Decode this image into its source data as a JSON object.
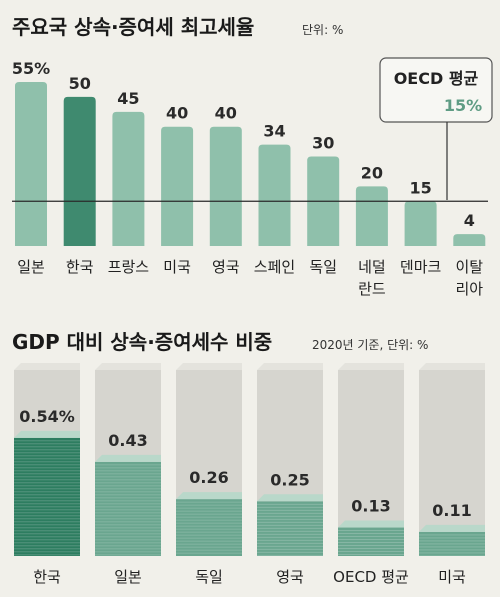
{
  "colors": {
    "bar": "#8fc0ab",
    "bar_highlight": "#3f8a6f",
    "ref_line": "#2a2a2a",
    "stack_bg": "#d6d5cf",
    "stack_fill": "#6aa68f",
    "stack_fill_highlight": "#2d7d60",
    "oecd_accent": "#5f9c84"
  },
  "chart_data": [
    {
      "type": "bar",
      "title": "주요국 상속·증여세 최고세율",
      "subtitle": "단위: %",
      "categories": [
        "일본",
        "한국",
        "프랑스",
        "미국",
        "영국",
        "스페인",
        "독일",
        "네덜\n란드",
        "덴마크",
        "이탈\n리아"
      ],
      "values": [
        55,
        50,
        45,
        40,
        40,
        34,
        30,
        20,
        15,
        4
      ],
      "value_labels": [
        "55%",
        "50",
        "45",
        "40",
        "40",
        "34",
        "30",
        "20",
        "15",
        "4"
      ],
      "highlight_index": 1,
      "reference_line": {
        "label": "OECD 평균",
        "value": 15,
        "value_label": "15%"
      },
      "ylim": [
        0,
        55
      ]
    },
    {
      "type": "bar",
      "title": "GDP 대비 상속·증여세수 비중",
      "subtitle": "2020년 기준, 단위: %",
      "categories": [
        "한국",
        "일본",
        "독일",
        "영국",
        "OECD 평균",
        "미국"
      ],
      "values": [
        0.54,
        0.43,
        0.26,
        0.25,
        0.13,
        0.11
      ],
      "value_labels": [
        "0.54%",
        "0.43",
        "0.26",
        "0.25",
        "0.13",
        "0.11"
      ],
      "highlight_index": 0,
      "ylim": [
        0,
        0.85
      ]
    }
  ]
}
